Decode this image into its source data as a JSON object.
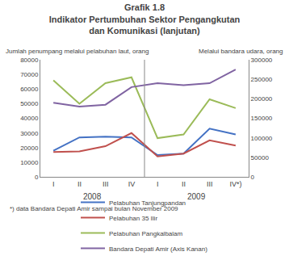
{
  "chart_data": {
    "type": "line",
    "title": "Grafik 1.8",
    "subtitle": [
      "Indikator Pertumbuhan Sektor Pengangkutan",
      "dan Komunikasi (lanjutan)"
    ],
    "ylabel": "Jumlah penumpang melalui pelabuhan laut, orang",
    "y2label": "Melalui bandara udara, orang",
    "annotations": [
      "*) data Bandara Depati Amir sampai bulan November 2009"
    ],
    "categories": [
      "I",
      "II",
      "III",
      "IV",
      "I",
      "II",
      "III",
      "IV*)"
    ],
    "category_groups": [
      "2008",
      "2008",
      "2008",
      "2008",
      "2009",
      "2009",
      "2009",
      "2009"
    ],
    "series": [
      {
        "name": "Pelabuhan Tanjungpandan",
        "color": "#4472C4",
        "values": [
          18000,
          27000,
          27500,
          27000,
          15000,
          16000,
          33000,
          29000
        ]
      },
      {
        "name": "Pelabuhan 35 Ilir",
        "color": "#C0504D",
        "values": [
          17000,
          17500,
          21000,
          30000,
          14000,
          16000,
          25000,
          21500
        ]
      },
      {
        "name": "Pelabuhan Pangkalbalam",
        "color": "#9BBB59",
        "values": [
          66000,
          50000,
          64000,
          68000,
          26500,
          29000,
          53000,
          47000
        ]
      },
      {
        "name": "Bandara Depati Amir (Axis Kanan)",
        "color": "#8064A2",
        "axis": "y2",
        "values": [
          190000,
          180000,
          185000,
          230000,
          240000,
          235000,
          240000,
          275000
        ]
      }
    ],
    "ylim": [
      0,
      80000
    ],
    "yticks": [
      0,
      10000,
      20000,
      30000,
      40000,
      50000,
      60000,
      70000,
      80000
    ],
    "y2lim": [
      0,
      300000
    ],
    "y2ticks": [
      0,
      50000,
      100000,
      150000,
      200000,
      250000,
      300000
    ],
    "grid": false,
    "legend": "bottom"
  }
}
